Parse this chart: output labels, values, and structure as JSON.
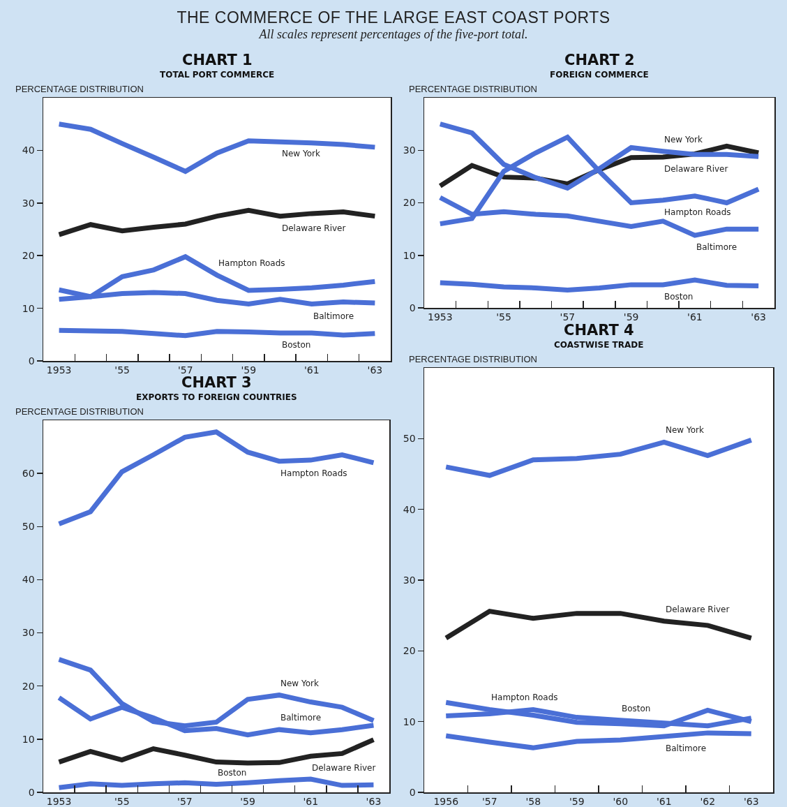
{
  "chart_data": [
    {
      "type": "line",
      "title": "CHART 1",
      "subtitle": "TOTAL PORT COMMERCE",
      "ylabel": "PERCENTAGE DISTRIBUTION",
      "annotations": [
        "THE COMMERCE OF THE LARGE EAST COAST PORTS",
        "All scales represent percentages of the five-port total."
      ],
      "x": [
        1953,
        1954,
        1955,
        1956,
        1957,
        1958,
        1959,
        1960,
        1961,
        1962,
        1963
      ],
      "series": [
        {
          "name": "New York",
          "color": "#4a6fd6",
          "values": [
            45,
            44,
            41.3,
            38.7,
            36,
            39.5,
            41.8,
            41.6,
            41.4,
            41.1,
            40.6
          ]
        },
        {
          "name": "Delaware River",
          "color": "#222222",
          "values": [
            24,
            25.9,
            24.7,
            25.4,
            26,
            27.5,
            28.6,
            27.5,
            28,
            28.3,
            27.5
          ]
        },
        {
          "name": "Hampton Roads",
          "color": "#4a6fd6",
          "values": [
            11.7,
            12.2,
            16,
            17.3,
            19.8,
            16.3,
            13.4,
            13.6,
            13.9,
            14.4,
            15.1
          ]
        },
        {
          "name": "Baltimore",
          "color": "#4a6fd6",
          "values": [
            13.5,
            12.2,
            12.8,
            13,
            12.8,
            11.5,
            10.8,
            11.7,
            10.8,
            11.2,
            11
          ]
        },
        {
          "name": "Boston",
          "color": "#4a6fd6",
          "values": [
            5.8,
            5.7,
            5.6,
            5.2,
            4.8,
            5.6,
            5.5,
            5.3,
            5.3,
            4.9,
            5.2
          ]
        }
      ],
      "xlim": [
        1952.5,
        1963.5
      ],
      "xticks": [
        {
          "value": 1953,
          "label": "1953"
        },
        {
          "value": 1953.5,
          "label": null
        },
        {
          "value": 1954.5,
          "label": null
        },
        {
          "value": 1955,
          "label": "'55"
        },
        {
          "value": 1955.5,
          "label": null
        },
        {
          "value": 1956.5,
          "label": null
        },
        {
          "value": 1957,
          "label": "'57"
        },
        {
          "value": 1957.5,
          "label": null
        },
        {
          "value": 1958.5,
          "label": null
        },
        {
          "value": 1959,
          "label": "'59"
        },
        {
          "value": 1959.5,
          "label": null
        },
        {
          "value": 1960.5,
          "label": null
        },
        {
          "value": 1961,
          "label": "'61"
        },
        {
          "value": 1961.5,
          "label": null
        },
        {
          "value": 1962.5,
          "label": null
        },
        {
          "value": 1963,
          "label": "'63"
        }
      ],
      "ylim": [
        0,
        50
      ],
      "yticks": [
        0,
        10,
        20,
        30,
        40
      ],
      "grid": false,
      "legend": false
    },
    {
      "type": "line",
      "title": "CHART 2",
      "subtitle": "FOREIGN COMMERCE",
      "ylabel": "PERCENTAGE DISTRIBUTION",
      "x": [
        1953,
        1954,
        1955,
        1956,
        1957,
        1958,
        1959,
        1960,
        1961,
        1962,
        1963
      ],
      "series": [
        {
          "name": "Delaware River",
          "color": "#222222",
          "values": [
            23.2,
            27.1,
            24.9,
            24.7,
            23.6,
            26.3,
            28.6,
            28.7,
            29.3,
            30.8,
            29.5
          ]
        },
        {
          "name": "New York",
          "color": "#4a6fd6",
          "values": [
            35,
            33.3,
            27.3,
            24.8,
            22.8,
            26.5,
            30.5,
            29.8,
            29.2,
            29.2,
            28.8
          ]
        },
        {
          "name": "Hampton Roads",
          "color": "#4a6fd6",
          "values": [
            16,
            17,
            26,
            29.5,
            32.5,
            26,
            20,
            20.5,
            21.3,
            20,
            22.6
          ]
        },
        {
          "name": "Baltimore",
          "color": "#4a6fd6",
          "values": [
            21,
            17.8,
            18.3,
            17.8,
            17.5,
            16.5,
            15.5,
            16.5,
            13.8,
            15,
            15
          ]
        },
        {
          "name": "Boston",
          "color": "#4a6fd6",
          "values": [
            4.8,
            4.5,
            4,
            3.8,
            3.4,
            3.8,
            4.4,
            4.4,
            5.3,
            4.3,
            4.2
          ]
        }
      ],
      "xlim": [
        1952.5,
        1963.5
      ],
      "xticks": [
        {
          "value": 1953,
          "label": "1953"
        },
        {
          "value": 1953.5,
          "label": null
        },
        {
          "value": 1954.5,
          "label": null
        },
        {
          "value": 1955,
          "label": "'55"
        },
        {
          "value": 1955.5,
          "label": null
        },
        {
          "value": 1956.5,
          "label": null
        },
        {
          "value": 1957,
          "label": "'57"
        },
        {
          "value": 1957.5,
          "label": null
        },
        {
          "value": 1958.5,
          "label": null
        },
        {
          "value": 1959,
          "label": "'59"
        },
        {
          "value": 1959.5,
          "label": null
        },
        {
          "value": 1960.5,
          "label": null
        },
        {
          "value": 1961,
          "label": "'61"
        },
        {
          "value": 1961.5,
          "label": null
        },
        {
          "value": 1962.5,
          "label": null
        },
        {
          "value": 1963,
          "label": "'63"
        }
      ],
      "ylim": [
        0,
        40
      ],
      "yticks": [
        0,
        10,
        20,
        30
      ],
      "grid": false,
      "legend": false
    },
    {
      "type": "line",
      "title": "CHART 3",
      "subtitle": "EXPORTS TO FOREIGN COUNTRIES",
      "ylabel": "PERCENTAGE DISTRIBUTION",
      "x": [
        1953,
        1954,
        1955,
        1956,
        1957,
        1958,
        1959,
        1960,
        1961,
        1962,
        1963
      ],
      "series": [
        {
          "name": "Hampton Roads",
          "color": "#4a6fd6",
          "values": [
            50.5,
            52.8,
            60.3,
            63.5,
            66.8,
            67.8,
            64,
            62.3,
            62.5,
            63.5,
            62
          ]
        },
        {
          "name": "New York",
          "color": "#4a6fd6",
          "values": [
            25,
            23,
            16.7,
            13.3,
            12.5,
            13.2,
            17.5,
            18.3,
            17,
            16,
            13.5
          ]
        },
        {
          "name": "Baltimore",
          "color": "#4a6fd6",
          "values": [
            17.8,
            13.8,
            16,
            14,
            11.6,
            12,
            10.8,
            11.8,
            11.2,
            11.8,
            12.6
          ]
        },
        {
          "name": "Delaware River",
          "color": "#222222",
          "values": [
            5.7,
            7.7,
            6.1,
            8.2,
            7,
            5.7,
            5.5,
            5.6,
            6.8,
            7.3,
            9.9
          ]
        },
        {
          "name": "Boston",
          "color": "#4a6fd6",
          "values": [
            0.9,
            1.6,
            1.3,
            1.6,
            1.8,
            1.5,
            1.8,
            2.2,
            2.5,
            1.3,
            1.4
          ]
        }
      ],
      "xlim": [
        1952.5,
        1963.5
      ],
      "xticks": [
        {
          "value": 1953,
          "label": "1953"
        },
        {
          "value": 1953.5,
          "label": null
        },
        {
          "value": 1954.5,
          "label": null
        },
        {
          "value": 1955,
          "label": "'55"
        },
        {
          "value": 1955.5,
          "label": null
        },
        {
          "value": 1956.5,
          "label": null
        },
        {
          "value": 1957,
          "label": "'57"
        },
        {
          "value": 1957.5,
          "label": null
        },
        {
          "value": 1958.5,
          "label": null
        },
        {
          "value": 1959,
          "label": "'59"
        },
        {
          "value": 1959.5,
          "label": null
        },
        {
          "value": 1960.5,
          "label": null
        },
        {
          "value": 1961,
          "label": "'61"
        },
        {
          "value": 1961.5,
          "label": null
        },
        {
          "value": 1962.5,
          "label": null
        },
        {
          "value": 1963,
          "label": "'63"
        }
      ],
      "ylim": [
        0,
        70
      ],
      "yticks": [
        0,
        10,
        20,
        30,
        40,
        50,
        60
      ],
      "grid": false,
      "legend": false
    },
    {
      "type": "line",
      "title": "CHART 4",
      "subtitle": "COASTWISE TRADE",
      "ylabel": "PERCENTAGE DISTRIBUTION",
      "x": [
        1956,
        1957,
        1958,
        1959,
        1960,
        1961,
        1962,
        1963
      ],
      "series": [
        {
          "name": "New York",
          "color": "#4a6fd6",
          "values": [
            46,
            44.8,
            47,
            47.2,
            47.8,
            49.5,
            47.6,
            49.8
          ]
        },
        {
          "name": "Delaware River",
          "color": "#222222",
          "values": [
            21.8,
            25.6,
            24.6,
            25.3,
            25.3,
            24.2,
            23.6,
            21.8
          ]
        },
        {
          "name": "Hampton Roads",
          "color": "#4a6fd6",
          "values": [
            12.7,
            11.7,
            10.9,
            9.9,
            9.7,
            9.4,
            11.6,
            10
          ]
        },
        {
          "name": "Boston",
          "color": "#4a6fd6",
          "values": [
            10.8,
            11.1,
            11.7,
            10.6,
            10.2,
            9.8,
            9.4,
            10.5
          ]
        },
        {
          "name": "Baltimore",
          "color": "#4a6fd6",
          "values": [
            8,
            7.1,
            6.3,
            7.2,
            7.4,
            7.9,
            8.4,
            8.3
          ]
        }
      ],
      "xlim": [
        1955.5,
        1963.5
      ],
      "xticks": [
        {
          "value": 1956,
          "label": "1956"
        },
        {
          "value": 1956.5,
          "label": null
        },
        {
          "value": 1957,
          "label": "'57"
        },
        {
          "value": 1957.5,
          "label": null
        },
        {
          "value": 1958,
          "label": "'58"
        },
        {
          "value": 1958.5,
          "label": null
        },
        {
          "value": 1959,
          "label": "'59"
        },
        {
          "value": 1959.5,
          "label": null
        },
        {
          "value": 1960,
          "label": "'60"
        },
        {
          "value": 1960.5,
          "label": null
        },
        {
          "value": 1961,
          "label": "'61"
        },
        {
          "value": 1961.5,
          "label": null
        },
        {
          "value": 1962,
          "label": "'62"
        },
        {
          "value": 1962.5,
          "label": null
        },
        {
          "value": 1963,
          "label": "'63"
        }
      ],
      "ylim": [
        0,
        60
      ],
      "yticks": [
        0,
        10,
        20,
        30,
        40,
        50
      ],
      "grid": false,
      "legend": false
    }
  ]
}
